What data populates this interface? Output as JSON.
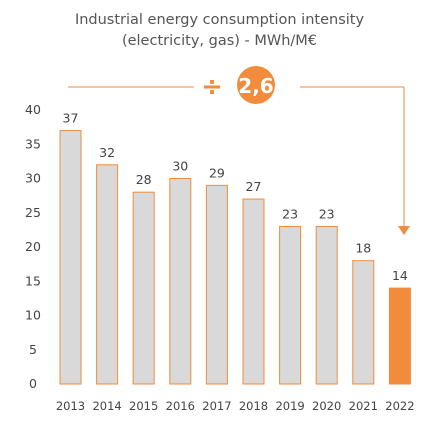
{
  "chart_data": {
    "type": "bar",
    "title_lines": [
      "Industrial energy consumption intensity",
      "(electricity, gas) - MWh/M€"
    ],
    "categories": [
      "2013",
      "2014",
      "2015",
      "2016",
      "2017",
      "2018",
      "2019",
      "2020",
      "2021",
      "2022"
    ],
    "values": [
      37,
      32,
      28,
      30,
      29,
      27,
      23,
      23,
      18,
      14
    ],
    "highlight_index": 9,
    "ylim": [
      0,
      40
    ],
    "yticks": [
      0,
      5,
      10,
      15,
      20,
      25,
      30,
      35,
      40
    ],
    "grid": false,
    "legend": "none",
    "annotation": {
      "symbol": "÷",
      "value": "2,6"
    },
    "colors": {
      "bar_fill": "#d9d9d9",
      "bar_outline": "#f08c3b",
      "highlight": "#f08c3b",
      "text": "#444444",
      "title": "#555555"
    }
  }
}
